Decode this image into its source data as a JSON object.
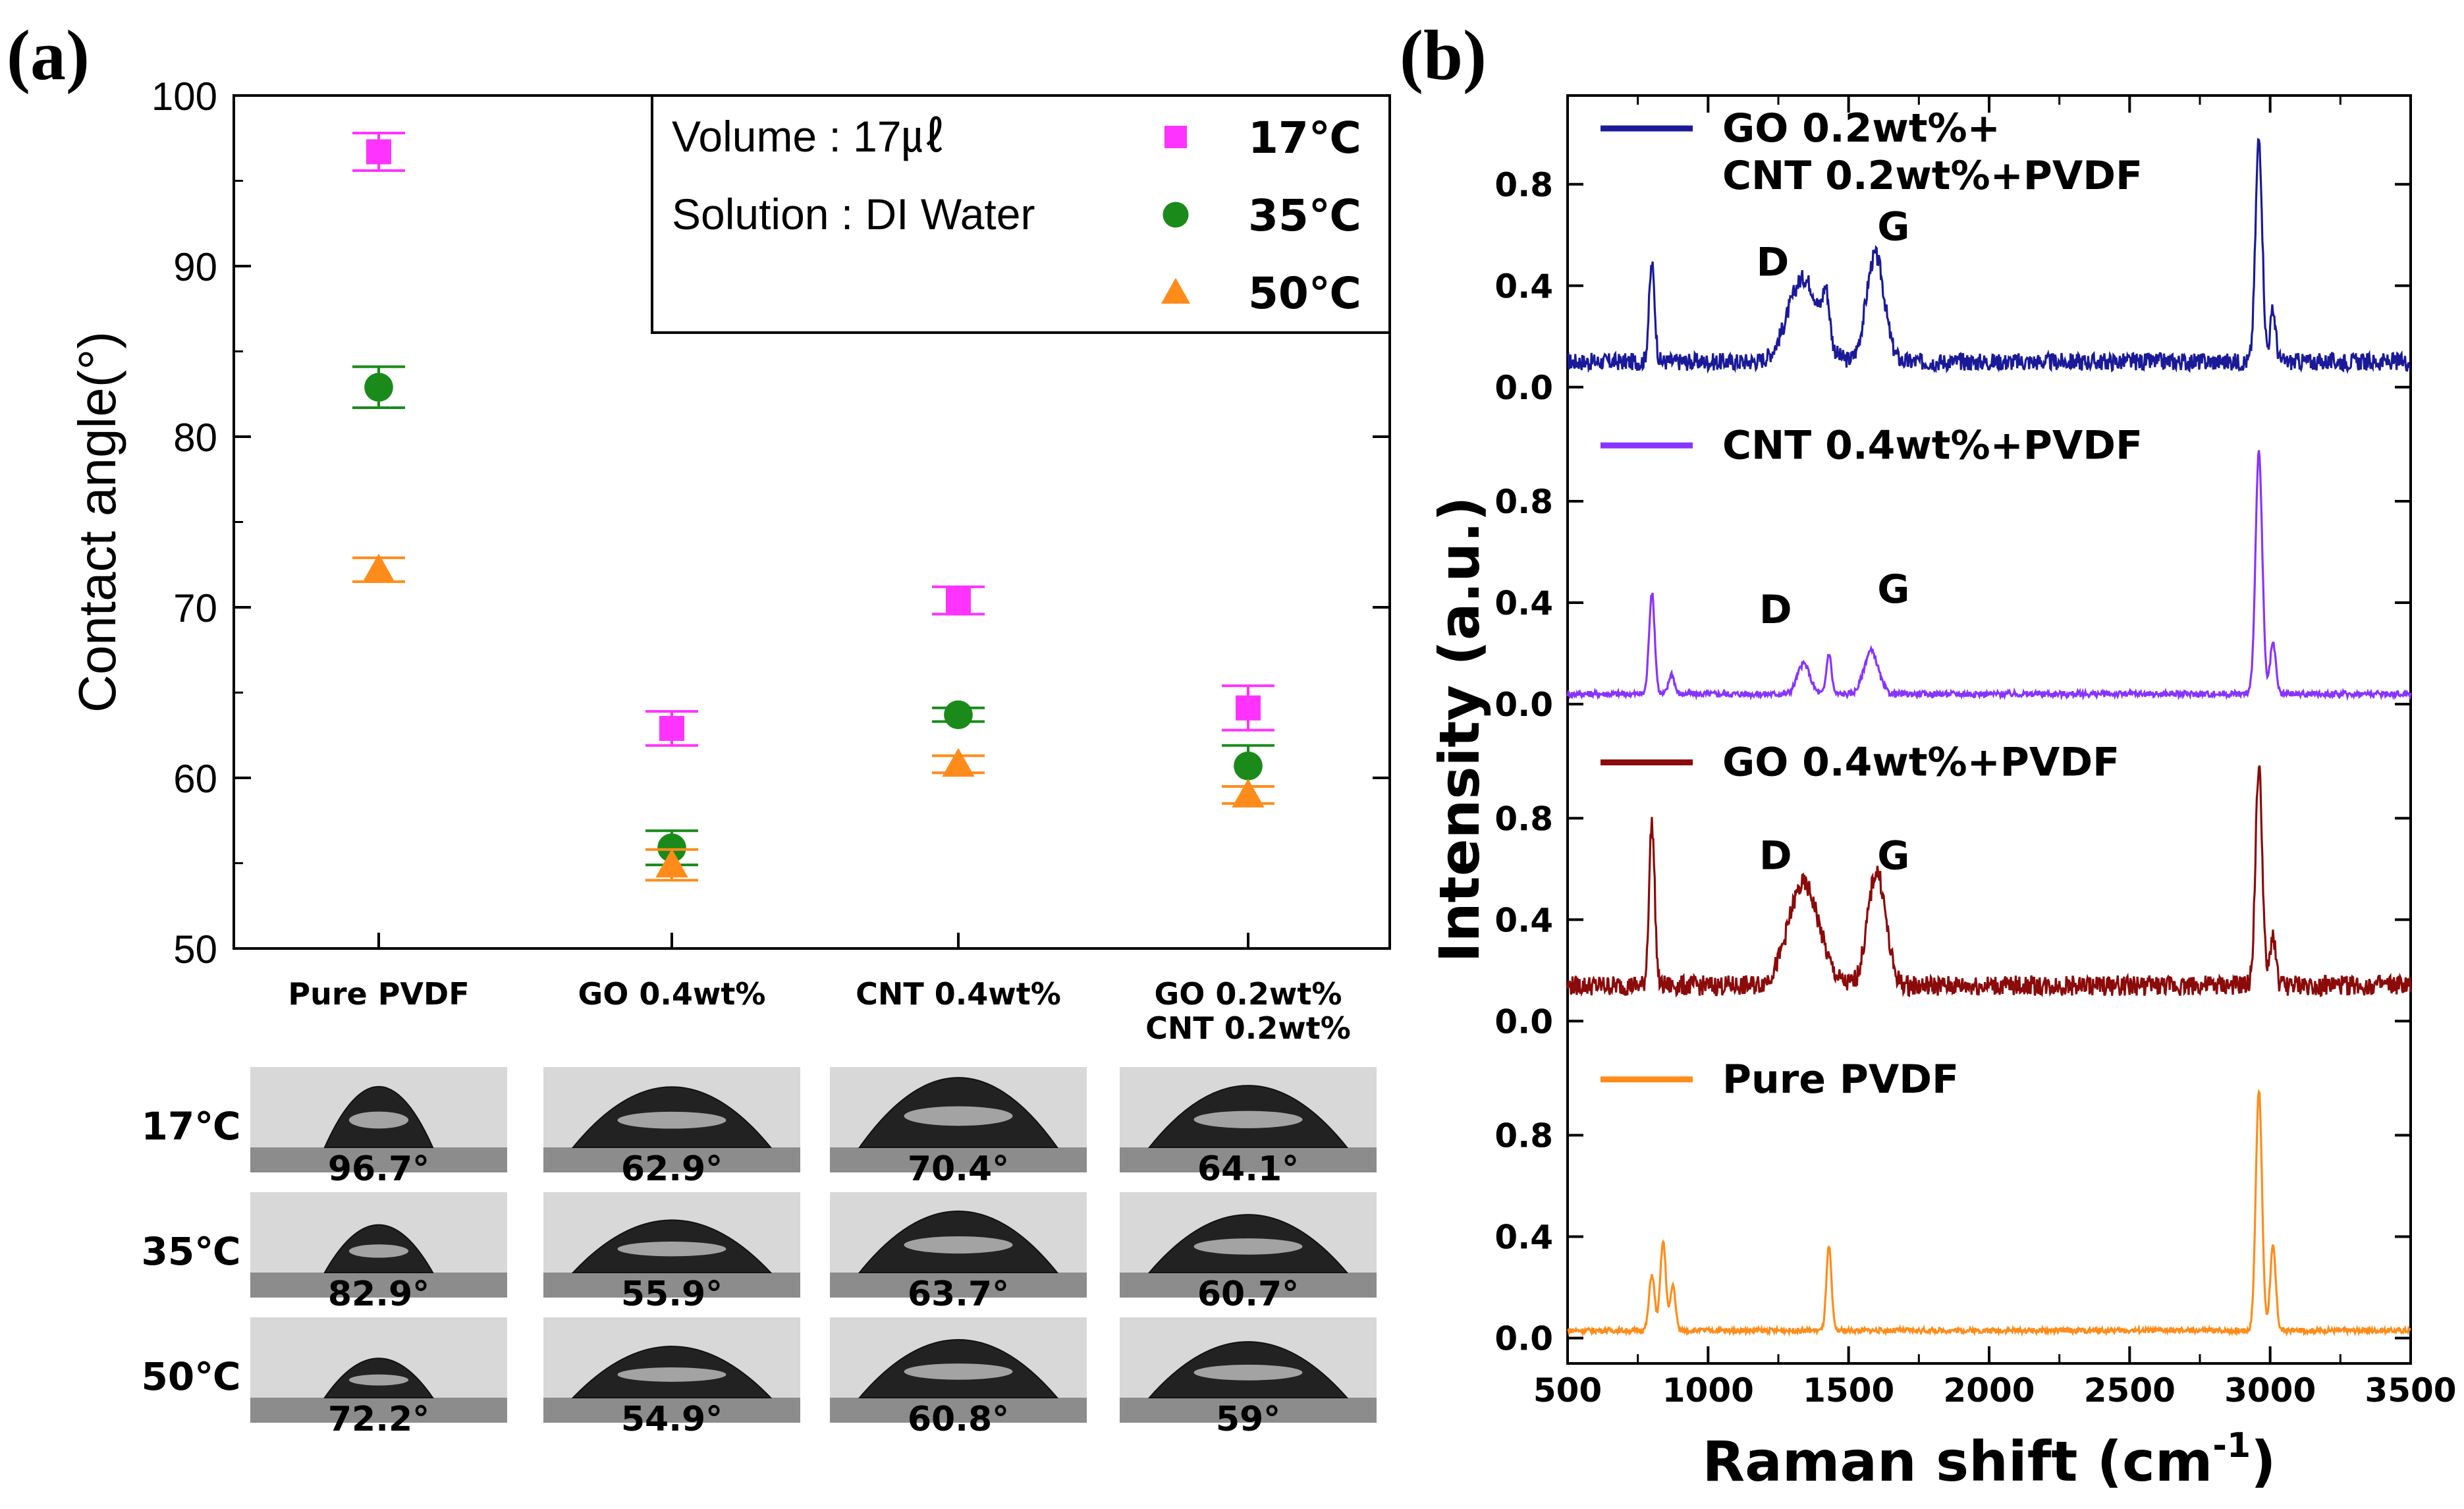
{
  "panel_a": {
    "label": "(a)"
  },
  "panel_b": {
    "label": "(b)"
  },
  "chart_data": [
    {
      "type": "scatter",
      "panel": "(a)",
      "title": "",
      "xlabel": "",
      "ylabel": "Contact angle(°)",
      "ylim": [
        50,
        100
      ],
      "yticks": [
        50,
        60,
        70,
        80,
        90,
        100
      ],
      "categories": [
        "Pure PVDF",
        "GO 0.4wt%",
        "CNT 0.4wt%",
        "GO 0.2wt%\nCNT 0.2wt%"
      ],
      "category_lines": [
        [
          "Pure PVDF"
        ],
        [
          "GO 0.4wt%"
        ],
        [
          "CNT 0.4wt%"
        ],
        [
          "GO 0.2wt%",
          "CNT 0.2wt%"
        ]
      ],
      "series": [
        {
          "name": "17℃",
          "marker": "square",
          "color": "#ff33ff",
          "values": [
            96.7,
            62.9,
            70.4,
            64.1
          ],
          "errors": [
            1.1,
            1.0,
            0.8,
            1.3
          ]
        },
        {
          "name": "35℃",
          "marker": "circle",
          "color": "#1a8a1a",
          "values": [
            82.9,
            55.9,
            63.7,
            60.7
          ],
          "errors": [
            1.2,
            1.0,
            0.4,
            1.2
          ]
        },
        {
          "name": "50℃",
          "marker": "triangle",
          "color": "#ff8c1a",
          "values": [
            72.2,
            54.9,
            60.8,
            59.0
          ],
          "errors": [
            0.7,
            0.9,
            0.5,
            0.5
          ]
        }
      ],
      "legend": {
        "position": "top-right",
        "info": [
          "Volume : 17㎕",
          "Solution : DI Water"
        ],
        "entries": [
          "17℃",
          "35℃",
          "50℃"
        ]
      }
    },
    {
      "type": "line",
      "panel": "(b)",
      "title": "",
      "xlabel": "Raman shift (cm",
      "xlabel_sup": "-1",
      "xlabel_end": ")",
      "ylabel": "Intensity (a.u.)",
      "xlim": [
        500,
        3500
      ],
      "xticks": [
        500,
        1000,
        1500,
        2000,
        2500,
        3000,
        3500
      ],
      "yticks": [
        0.0,
        0.4,
        0.8
      ],
      "ytick_labels": [
        "0.0",
        "0.4",
        "0.8"
      ],
      "stack_range": [
        0,
        1.0
      ],
      "series": [
        {
          "name": "GO 0.2wt%+\nCNT 0.2wt%+PVDF",
          "legend_lines": [
            "GO 0.2wt%+",
            "CNT 0.2wt%+PVDF"
          ],
          "color": "#1a1a99",
          "baseline": 0.1,
          "noise": 0.035,
          "peaks": [
            [
              800,
              0.38,
              10
            ],
            [
              1340,
              0.33,
              55
            ],
            [
              1420,
              0.18,
              12
            ],
            [
              1595,
              0.42,
              32
            ],
            [
              2960,
              0.88,
              12
            ],
            [
              3010,
              0.2,
              10
            ]
          ],
          "annotations": [
            {
              "text": "D",
              "x": 1230,
              "y": 0.44
            },
            {
              "text": "G",
              "x": 1660,
              "y": 0.58
            }
          ]
        },
        {
          "name": "CNT 0.4wt%+PVDF",
          "legend_lines": [
            "CNT 0.4wt%+PVDF"
          ],
          "color": "#8833ff",
          "baseline": 0.04,
          "noise": 0.012,
          "peaks": [
            [
              800,
              0.4,
              10
            ],
            [
              870,
              0.08,
              10
            ],
            [
              1340,
              0.12,
              22
            ],
            [
              1430,
              0.16,
              9
            ],
            [
              1580,
              0.17,
              25
            ],
            [
              2960,
              0.95,
              12
            ],
            [
              3010,
              0.2,
              10
            ]
          ],
          "annotations": [
            {
              "text": "D",
              "x": 1240,
              "y": 0.32
            },
            {
              "text": "G",
              "x": 1660,
              "y": 0.4
            }
          ]
        },
        {
          "name": "GO 0.4wt%+PVDF",
          "legend_lines": [
            "GO 0.4wt%+PVDF"
          ],
          "color": "#8b0a0a",
          "baseline": 0.14,
          "noise": 0.04,
          "peaks": [
            [
              800,
              0.64,
              10
            ],
            [
              1340,
              0.4,
              55
            ],
            [
              1600,
              0.45,
              32
            ],
            [
              2960,
              0.86,
              12
            ],
            [
              3010,
              0.2,
              10
            ]
          ],
          "annotations": [
            {
              "text": "D",
              "x": 1240,
              "y": 0.6
            },
            {
              "text": "G",
              "x": 1660,
              "y": 0.6
            }
          ]
        },
        {
          "name": "Pure PVDF",
          "legend_lines": [
            "Pure PVDF"
          ],
          "color": "#ff8c1a",
          "baseline": 0.03,
          "noise": 0.01,
          "peaks": [
            [
              800,
              0.22,
              10
            ],
            [
              840,
              0.35,
              10
            ],
            [
              875,
              0.18,
              9
            ],
            [
              1430,
              0.33,
              9
            ],
            [
              2960,
              0.95,
              11
            ],
            [
              3010,
              0.33,
              10
            ]
          ],
          "annotations": []
        }
      ]
    }
  ],
  "droplets": {
    "row_labels": [
      "17℃",
      "35℃",
      "50℃"
    ],
    "angles": [
      [
        "96.7°",
        "62.9°",
        "70.4°",
        "64.1°"
      ],
      [
        "82.9°",
        "55.9°",
        "63.7°",
        "60.7°"
      ],
      [
        "72.2°",
        "54.9°",
        "60.8°",
        "59°"
      ]
    ],
    "angle_values": [
      [
        96.7,
        62.9,
        70.4,
        64.1
      ],
      [
        82.9,
        55.9,
        63.7,
        60.7
      ],
      [
        72.2,
        54.9,
        60.8,
        59.0
      ]
    ]
  }
}
